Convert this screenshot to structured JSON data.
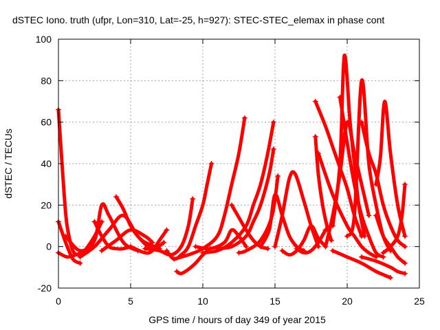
{
  "chart_data": {
    "type": "scatter",
    "title": "dSTEC Iono. truth (ufpr, Lon=310, Lat=-25, h=927): STEC-STEC_elemax in phase cont",
    "xlabel": "GPS time / hours of day 349 of year 2015",
    "ylabel": "dSTEC  / TECUs",
    "xlim": [
      0,
      25
    ],
    "ylim": [
      -20,
      100
    ],
    "xticks": [
      "0",
      "5",
      "10",
      "15",
      "20",
      "25"
    ],
    "yticks": [
      "-20",
      "0",
      "20",
      "40",
      "60",
      "80",
      "100"
    ],
    "grid": true,
    "marker": "+",
    "color": "#ff0000",
    "series": [
      {
        "x": [
          0.0,
          0.2,
          0.4,
          0.6,
          1.0,
          1.4
        ],
        "y": [
          66,
          45,
          25,
          10,
          -2,
          -4
        ]
      },
      {
        "x": [
          0.0,
          0.5,
          1.0,
          1.5
        ],
        "y": [
          12,
          2,
          -6,
          -8
        ]
      },
      {
        "x": [
          0.0,
          0.6,
          1.2,
          1.8,
          2.5,
          3.0
        ],
        "y": [
          -3,
          -5,
          -4,
          -2,
          5,
          12
        ]
      },
      {
        "x": [
          0.5,
          1.5,
          2.5,
          3.0,
          3.5,
          4.5,
          5.5
        ],
        "y": [
          5,
          -2,
          3,
          20,
          15,
          2,
          -2
        ]
      },
      {
        "x": [
          1.5,
          2.5,
          3.5,
          4.5,
          5.5,
          6.5,
          7.3
        ],
        "y": [
          -5,
          0,
          8,
          15,
          5,
          -1,
          2
        ]
      },
      {
        "x": [
          2.5,
          3.0,
          3.5,
          4.0,
          4.5,
          5.0
        ],
        "y": [
          12,
          5,
          0,
          -1,
          -1,
          0
        ]
      },
      {
        "x": [
          4.0,
          4.5,
          5.0,
          5.5,
          6.0,
          7.0
        ],
        "y": [
          24,
          18,
          10,
          5,
          2,
          -1
        ]
      },
      {
        "x": [
          3.0,
          4.0,
          5.0,
          6.0,
          6.5
        ],
        "y": [
          -2,
          3,
          8,
          5,
          2
        ]
      },
      {
        "x": [
          5.0,
          6.0,
          6.5,
          7.0,
          7.5
        ],
        "y": [
          0,
          -3,
          -2,
          3,
          8
        ]
      },
      {
        "x": [
          6.0,
          7.0,
          7.8,
          8.5,
          9.0,
          9.3
        ],
        "y": [
          -1,
          -2,
          -4,
          0,
          10,
          23
        ]
      },
      {
        "x": [
          7.5,
          8.0,
          8.5,
          9.0,
          9.5,
          10.0,
          10.3,
          10.6
        ],
        "y": [
          -2,
          -6,
          -4,
          0,
          10,
          20,
          30,
          40
        ]
      },
      {
        "x": [
          8.2,
          8.5,
          9.0,
          9.5,
          10.0,
          10.5
        ],
        "y": [
          -12,
          -13,
          -11,
          -8,
          -4,
          -1
        ]
      },
      {
        "x": [
          8.0,
          9.0,
          10.0,
          11.0,
          11.5,
          12.0,
          12.5,
          12.9
        ],
        "y": [
          -6,
          -4,
          -1,
          5,
          15,
          30,
          45,
          62
        ]
      },
      {
        "x": [
          9.5,
          10.5,
          11.5,
          12.0,
          12.5,
          13.0
        ],
        "y": [
          0,
          -1,
          2,
          8,
          5,
          0
        ]
      },
      {
        "x": [
          10.0,
          11.0,
          12.0,
          13.0,
          13.5,
          14.0,
          14.5,
          14.9
        ],
        "y": [
          -3,
          -2,
          2,
          10,
          20,
          30,
          45,
          60
        ]
      },
      {
        "x": [
          11.0,
          12.0,
          13.0,
          13.5,
          14.0,
          14.6,
          14.9
        ],
        "y": [
          -1,
          0,
          5,
          12,
          20,
          35,
          47
        ]
      },
      {
        "x": [
          12.0,
          12.5,
          13.0,
          13.5,
          14.0,
          14.5
        ],
        "y": [
          20,
          14,
          8,
          3,
          0,
          -1
        ]
      },
      {
        "x": [
          12.5,
          13.0,
          14.0,
          14.8,
          15.2
        ],
        "y": [
          -3,
          -2,
          3,
          15,
          34
        ]
      },
      {
        "x": [
          14.0,
          14.6,
          15.0,
          15.5,
          16.0,
          16.5,
          17.0
        ],
        "y": [
          0,
          8,
          25,
          15,
          5,
          0,
          -2
        ]
      },
      {
        "x": [
          15.0,
          15.5,
          16.0,
          16.4,
          17.0,
          17.5,
          18.0
        ],
        "y": [
          0,
          15,
          33,
          35,
          22,
          10,
          0
        ]
      },
      {
        "x": [
          15.5,
          16.0,
          16.5,
          17.0,
          17.5,
          18.0,
          18.5
        ],
        "y": [
          -2,
          -4,
          -2,
          3,
          10,
          4,
          0
        ]
      },
      {
        "x": [
          16.5,
          17.0,
          17.5,
          18.0,
          18.5
        ],
        "y": [
          -1,
          -3,
          -2,
          2,
          8
        ]
      },
      {
        "x": [
          17.8,
          18.0,
          18.3,
          18.6,
          18.9
        ],
        "y": [
          53,
          35,
          20,
          10,
          3
        ]
      },
      {
        "x": [
          17.8,
          18.5,
          19.0,
          19.5,
          20.0,
          20.5,
          21.0
        ],
        "y": [
          70,
          58,
          48,
          38,
          28,
          15,
          5
        ]
      },
      {
        "x": [
          18.0,
          19.0,
          20.0,
          20.5,
          21.0,
          21.5,
          22.0
        ],
        "y": [
          45,
          25,
          10,
          5,
          0,
          -3,
          -5
        ]
      },
      {
        "x": [
          18.5,
          19.0,
          19.5,
          20.0,
          20.5,
          21.0,
          21.5
        ],
        "y": [
          0,
          15,
          35,
          60,
          45,
          30,
          15
        ]
      },
      {
        "x": [
          19.0,
          19.5,
          19.8,
          20.2,
          20.5,
          20.8,
          21.2
        ],
        "y": [
          10,
          40,
          92,
          60,
          40,
          20,
          5
        ]
      },
      {
        "x": [
          19.5,
          20.0,
          20.5,
          21.0,
          21.5,
          22.0,
          22.5
        ],
        "y": [
          72,
          50,
          30,
          15,
          5,
          -3,
          -5
        ]
      },
      {
        "x": [
          20.0,
          20.5,
          21.0,
          21.5,
          22.0,
          22.5,
          23.0
        ],
        "y": [
          5,
          15,
          80,
          40,
          20,
          5,
          -2
        ]
      },
      {
        "x": [
          21.0,
          21.5,
          22.0,
          22.5,
          23.0,
          23.5,
          24.0
        ],
        "y": [
          60,
          45,
          35,
          20,
          10,
          3,
          0
        ]
      },
      {
        "x": [
          22.0,
          22.3,
          22.6,
          23.0,
          23.5,
          24.0
        ],
        "y": [
          30,
          43,
          70,
          45,
          20,
          5
        ]
      },
      {
        "x": [
          22.0,
          22.5,
          23.0,
          23.5,
          24.0
        ],
        "y": [
          15,
          5,
          0,
          -5,
          -8
        ]
      },
      {
        "x": [
          19.0,
          20.0,
          21.0,
          22.0,
          23.0
        ],
        "y": [
          -2,
          -5,
          -8,
          -12,
          -15
        ]
      },
      {
        "x": [
          21.0,
          22.0,
          23.0,
          23.5,
          24.0
        ],
        "y": [
          -5,
          -7,
          -10,
          -12,
          -13
        ]
      },
      {
        "x": [
          22.5,
          23.0,
          23.5,
          23.8,
          24.0
        ],
        "y": [
          -3,
          0,
          5,
          15,
          30
        ]
      }
    ]
  }
}
